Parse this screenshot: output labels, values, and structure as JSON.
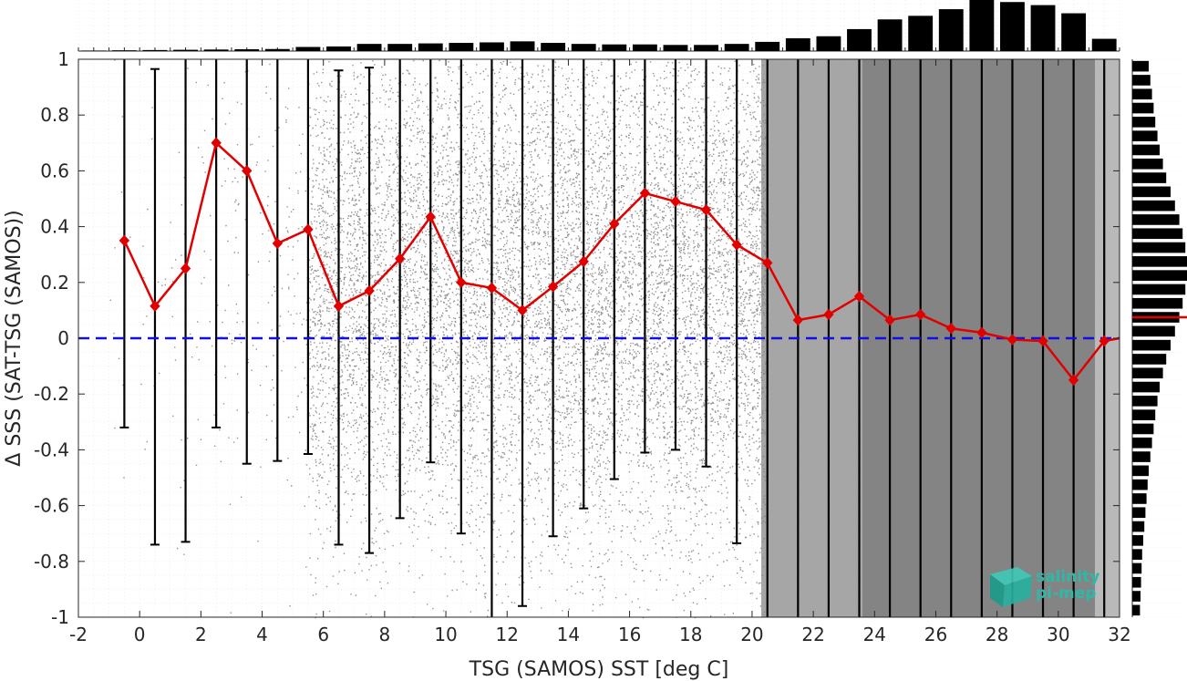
{
  "chart_data": {
    "type": "scatter",
    "xlabel": "TSG (SAMOS) SST [deg C]",
    "ylabel": "Δ SSS (SAT-TSG (SAMOS))",
    "xlim": [
      -2,
      32
    ],
    "ylim": [
      -1,
      1
    ],
    "xticks": [
      "-2",
      "0",
      "2",
      "4",
      "6",
      "8",
      "10",
      "12",
      "14",
      "16",
      "18",
      "20",
      "22",
      "24",
      "26",
      "28",
      "30",
      "32"
    ],
    "yticks": [
      "-1",
      "-0.8",
      "-0.6",
      "-0.4",
      "-0.2",
      "0",
      "0.2",
      "0.4",
      "0.6",
      "0.8",
      "1"
    ],
    "grid": true,
    "zero_line": {
      "y": 0,
      "color": "#1010e0",
      "style": "dashed"
    },
    "scatter_color": "#808080",
    "mean_series": {
      "color": "#e00000",
      "x": [
        -0.5,
        0.5,
        1.5,
        2.5,
        3.5,
        4.5,
        5.5,
        6.5,
        7.5,
        8.5,
        9.5,
        10.5,
        11.5,
        12.5,
        13.5,
        14.5,
        15.5,
        16.5,
        17.5,
        18.5,
        19.5,
        20.5,
        21.5,
        22.5,
        23.5,
        24.5,
        25.5,
        26.5,
        27.5,
        28.5,
        29.5,
        30.5,
        31.5
      ],
      "y": [
        0.35,
        0.115,
        0.25,
        0.7,
        0.6,
        0.34,
        0.39,
        0.115,
        0.17,
        0.285,
        0.435,
        0.2,
        0.18,
        0.1,
        0.185,
        0.275,
        0.41,
        0.52,
        0.49,
        0.46,
        0.335,
        0.27,
        0.065,
        0.085,
        0.15,
        0.065,
        0.085,
        0.035,
        0.02,
        -0.005,
        -0.01,
        -0.15,
        -0.01
      ],
      "err_low": [
        -0.32,
        -0.74,
        -0.73,
        -0.32,
        -0.45,
        -0.44,
        -0.415,
        -0.74,
        -0.77,
        -0.645,
        -0.445,
        -0.7,
        -1.0,
        -0.96,
        -0.71,
        -0.61,
        -0.505,
        -0.41,
        -0.4,
        -0.46,
        -0.735,
        -1.0,
        -1.0,
        -1.0,
        -1.0,
        -1.0,
        -1.0,
        -1.0,
        -1.0,
        -1.0,
        -1.0,
        -1.0,
        -1.0
      ],
      "err_high": [
        1.0,
        0.965,
        1.0,
        1.0,
        1.0,
        1.0,
        1.0,
        0.96,
        0.97,
        1.0,
        1.0,
        1.0,
        1.0,
        1.0,
        1.0,
        1.0,
        1.0,
        1.0,
        1.0,
        1.0,
        1.0,
        1.0,
        1.0,
        1.0,
        1.0,
        1.0,
        1.0,
        1.0,
        1.0,
        1.0,
        1.0,
        1.0,
        1.0
      ]
    },
    "top_histogram": {
      "bin_centers": [
        -1.5,
        -0.5,
        0.5,
        1.5,
        2.5,
        3.5,
        4.5,
        5.5,
        6.5,
        7.5,
        8.5,
        9.5,
        10.5,
        11.5,
        12.5,
        13.5,
        14.5,
        15.5,
        16.5,
        17.5,
        18.5,
        19.5,
        20.5,
        21.5,
        22.5,
        23.5,
        24.5,
        25.5,
        26.5,
        27.5,
        28.5,
        29.5,
        30.5,
        31.5
      ],
      "relative_counts": [
        0.01,
        0.015,
        0.02,
        0.025,
        0.03,
        0.035,
        0.04,
        0.08,
        0.09,
        0.14,
        0.14,
        0.15,
        0.16,
        0.17,
        0.19,
        0.16,
        0.14,
        0.13,
        0.13,
        0.12,
        0.12,
        0.14,
        0.18,
        0.25,
        0.29,
        0.43,
        0.62,
        0.69,
        0.82,
        1.0,
        0.96,
        0.9,
        0.74,
        0.24
      ]
    },
    "right_histogram": {
      "bin_centers": [
        0.975,
        0.925,
        0.875,
        0.825,
        0.775,
        0.725,
        0.675,
        0.625,
        0.575,
        0.525,
        0.475,
        0.425,
        0.375,
        0.325,
        0.275,
        0.225,
        0.175,
        0.125,
        0.075,
        0.025,
        -0.025,
        -0.075,
        -0.125,
        -0.175,
        -0.225,
        -0.275,
        -0.325,
        -0.375,
        -0.425,
        -0.475,
        -0.525,
        -0.575,
        -0.625,
        -0.675,
        -0.725,
        -0.775,
        -0.825,
        -0.875,
        -0.925,
        -0.975
      ],
      "relative_counts": [
        0.3,
        0.33,
        0.36,
        0.39,
        0.42,
        0.46,
        0.5,
        0.56,
        0.62,
        0.7,
        0.78,
        0.86,
        0.92,
        0.97,
        1.0,
        1.0,
        0.97,
        0.92,
        0.86,
        0.78,
        0.7,
        0.62,
        0.56,
        0.5,
        0.46,
        0.42,
        0.39,
        0.36,
        0.33,
        0.3,
        0.28,
        0.26,
        0.24,
        0.22,
        0.2,
        0.18,
        0.17,
        0.16,
        0.15,
        0.14
      ],
      "median_line": {
        "y": 0.075,
        "color": "#e00000"
      }
    },
    "logo": {
      "line1": "salinity",
      "line2": "pi-mep"
    }
  }
}
